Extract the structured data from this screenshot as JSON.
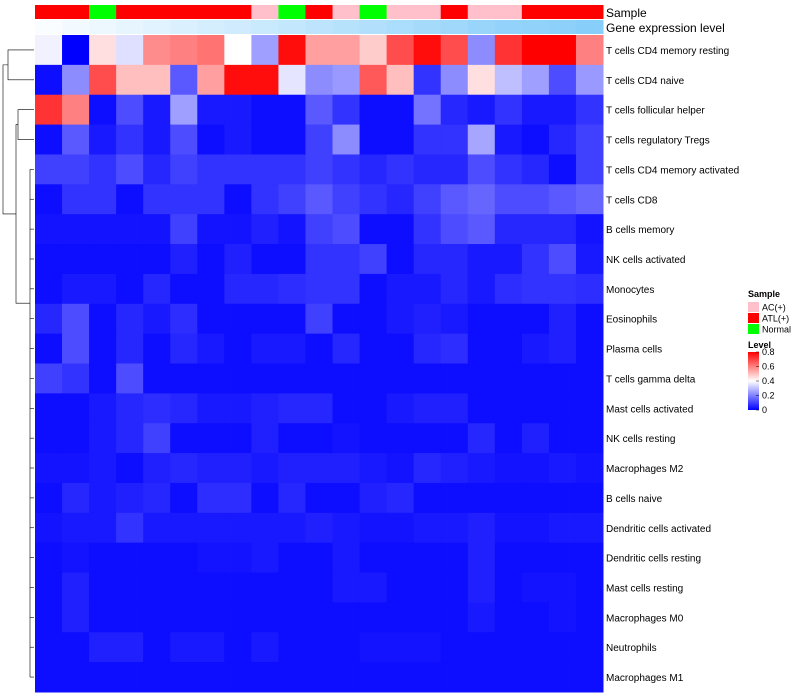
{
  "chart_data": {
    "type": "heatmap",
    "columns": 21,
    "annotations": {
      "sample_label": "Sample",
      "expression_label": "Gene expression level",
      "sample_track": [
        "ATL(+)",
        "ATL(+)",
        "Normal",
        "ATL(+)",
        "ATL(+)",
        "ATL(+)",
        "ATL(+)",
        "ATL(+)",
        "AC(+)",
        "Normal",
        "ATL(+)",
        "AC(+)",
        "Normal",
        "AC(+)",
        "AC(+)",
        "ATL(+)",
        "AC(+)",
        "AC(+)",
        "ATL(+)",
        "ATL(+)",
        "ATL(+)"
      ],
      "expression_track": [
        0.05,
        0.1,
        0.15,
        0.2,
        0.25,
        0.3,
        0.35,
        0.4,
        0.45,
        0.5,
        0.55,
        0.6,
        0.65,
        0.7,
        0.75,
        0.8,
        0.85,
        0.9,
        0.92,
        0.95,
        1.0
      ]
    },
    "rows": [
      {
        "label": "T cells CD4 memory resting",
        "values": [
          0.38,
          0.0,
          0.45,
          0.35,
          0.58,
          0.6,
          0.62,
          0.4,
          0.25,
          0.78,
          0.55,
          0.55,
          0.48,
          0.68,
          0.78,
          0.68,
          0.22,
          0.72,
          0.8,
          0.8,
          0.6
        ]
      },
      {
        "label": "T cells CD4 naive",
        "values": [
          0.02,
          0.22,
          0.68,
          0.5,
          0.5,
          0.14,
          0.55,
          0.78,
          0.78,
          0.36,
          0.22,
          0.24,
          0.66,
          0.5,
          0.08,
          0.22,
          0.45,
          0.3,
          0.25,
          0.12,
          0.24
        ]
      },
      {
        "label": "T cells follicular helper",
        "values": [
          0.72,
          0.6,
          0.02,
          0.12,
          0.04,
          0.25,
          0.04,
          0.04,
          0.02,
          0.02,
          0.14,
          0.08,
          0.02,
          0.02,
          0.18,
          0.06,
          0.04,
          0.08,
          0.04,
          0.04,
          0.08
        ]
      },
      {
        "label": "T cells regulatory  Tregs",
        "values": [
          0.02,
          0.14,
          0.04,
          0.08,
          0.04,
          0.12,
          0.02,
          0.04,
          0.02,
          0.02,
          0.1,
          0.22,
          0.02,
          0.02,
          0.08,
          0.08,
          0.26,
          0.04,
          0.02,
          0.06,
          0.1
        ]
      },
      {
        "label": "T cells CD4 memory activated",
        "values": [
          0.1,
          0.1,
          0.08,
          0.12,
          0.06,
          0.1,
          0.08,
          0.08,
          0.08,
          0.08,
          0.1,
          0.08,
          0.06,
          0.08,
          0.06,
          0.06,
          0.12,
          0.08,
          0.06,
          0.02,
          0.1
        ]
      },
      {
        "label": "T cells CD8",
        "values": [
          0.02,
          0.08,
          0.08,
          0.02,
          0.08,
          0.08,
          0.08,
          0.02,
          0.08,
          0.1,
          0.14,
          0.1,
          0.08,
          0.06,
          0.1,
          0.14,
          0.16,
          0.12,
          0.12,
          0.14,
          0.16
        ]
      },
      {
        "label": "B cells memory",
        "values": [
          0.03,
          0.03,
          0.03,
          0.03,
          0.03,
          0.1,
          0.03,
          0.03,
          0.05,
          0.03,
          0.1,
          0.12,
          0.02,
          0.02,
          0.08,
          0.12,
          0.14,
          0.06,
          0.06,
          0.06,
          0.03
        ]
      },
      {
        "label": "NK cells activated",
        "values": [
          0.02,
          0.02,
          0.02,
          0.02,
          0.02,
          0.05,
          0.02,
          0.05,
          0.02,
          0.02,
          0.08,
          0.08,
          0.1,
          0.02,
          0.06,
          0.06,
          0.04,
          0.04,
          0.08,
          0.12,
          0.04
        ]
      },
      {
        "label": "Monocytes",
        "values": [
          0.02,
          0.04,
          0.04,
          0.02,
          0.06,
          0.02,
          0.02,
          0.06,
          0.06,
          0.07,
          0.08,
          0.08,
          0.02,
          0.04,
          0.04,
          0.06,
          0.04,
          0.07,
          0.08,
          0.08,
          0.07
        ]
      },
      {
        "label": "Eosinophils",
        "values": [
          0.06,
          0.12,
          0.02,
          0.06,
          0.04,
          0.07,
          0.02,
          0.02,
          0.02,
          0.02,
          0.1,
          0.02,
          0.02,
          0.04,
          0.05,
          0.04,
          0.02,
          0.02,
          0.02,
          0.05,
          0.02
        ]
      },
      {
        "label": "Plasma cells",
        "values": [
          0.02,
          0.12,
          0.02,
          0.06,
          0.02,
          0.06,
          0.04,
          0.02,
          0.04,
          0.04,
          0.02,
          0.06,
          0.02,
          0.02,
          0.06,
          0.07,
          0.02,
          0.02,
          0.04,
          0.05,
          0.02
        ]
      },
      {
        "label": "T cells gamma delta",
        "values": [
          0.1,
          0.08,
          0.02,
          0.12,
          0.02,
          0.02,
          0.02,
          0.02,
          0.02,
          0.02,
          0.02,
          0.02,
          0.02,
          0.02,
          0.02,
          0.02,
          0.02,
          0.02,
          0.02,
          0.02,
          0.02
        ]
      },
      {
        "label": "Mast cells activated",
        "values": [
          0.02,
          0.02,
          0.04,
          0.06,
          0.07,
          0.06,
          0.04,
          0.04,
          0.05,
          0.06,
          0.06,
          0.02,
          0.02,
          0.04,
          0.05,
          0.05,
          0.02,
          0.02,
          0.02,
          0.02,
          0.02
        ]
      },
      {
        "label": "NK cells resting",
        "values": [
          0.02,
          0.02,
          0.04,
          0.06,
          0.1,
          0.02,
          0.02,
          0.02,
          0.05,
          0.02,
          0.02,
          0.03,
          0.02,
          0.02,
          0.02,
          0.02,
          0.06,
          0.02,
          0.05,
          0.02,
          0.02
        ]
      },
      {
        "label": "Macrophages M2",
        "values": [
          0.03,
          0.03,
          0.04,
          0.02,
          0.05,
          0.06,
          0.05,
          0.05,
          0.04,
          0.05,
          0.05,
          0.05,
          0.04,
          0.03,
          0.06,
          0.05,
          0.04,
          0.03,
          0.03,
          0.04,
          0.03
        ]
      },
      {
        "label": "B cells naive",
        "values": [
          0.02,
          0.06,
          0.04,
          0.05,
          0.06,
          0.02,
          0.07,
          0.07,
          0.02,
          0.06,
          0.02,
          0.02,
          0.05,
          0.06,
          0.02,
          0.02,
          0.02,
          0.02,
          0.02,
          0.02,
          0.02
        ]
      },
      {
        "label": "Dendritic cells activated",
        "values": [
          0.03,
          0.04,
          0.04,
          0.08,
          0.04,
          0.04,
          0.04,
          0.04,
          0.04,
          0.04,
          0.05,
          0.04,
          0.03,
          0.03,
          0.04,
          0.04,
          0.05,
          0.03,
          0.03,
          0.04,
          0.04
        ]
      },
      {
        "label": "Dendritic cells resting",
        "values": [
          0.02,
          0.03,
          0.02,
          0.02,
          0.02,
          0.02,
          0.03,
          0.03,
          0.04,
          0.02,
          0.02,
          0.04,
          0.02,
          0.02,
          0.02,
          0.02,
          0.05,
          0.02,
          0.02,
          0.02,
          0.02
        ]
      },
      {
        "label": "Mast cells resting",
        "values": [
          0.02,
          0.05,
          0.02,
          0.02,
          0.02,
          0.02,
          0.02,
          0.02,
          0.02,
          0.02,
          0.02,
          0.04,
          0.04,
          0.02,
          0.02,
          0.02,
          0.05,
          0.02,
          0.03,
          0.03,
          0.02
        ]
      },
      {
        "label": "Macrophages M0",
        "values": [
          0.02,
          0.05,
          0.02,
          0.02,
          0.02,
          0.02,
          0.02,
          0.02,
          0.02,
          0.02,
          0.02,
          0.02,
          0.02,
          0.02,
          0.02,
          0.02,
          0.04,
          0.02,
          0.02,
          0.03,
          0.02
        ]
      },
      {
        "label": "Neutrophils",
        "values": [
          0.02,
          0.02,
          0.05,
          0.05,
          0.02,
          0.04,
          0.04,
          0.02,
          0.04,
          0.02,
          0.02,
          0.02,
          0.03,
          0.03,
          0.03,
          0.02,
          0.02,
          0.02,
          0.02,
          0.02,
          0.02
        ]
      },
      {
        "label": "Macrophages M1",
        "values": [
          0.02,
          0.02,
          0.02,
          0.02,
          0.02,
          0.02,
          0.02,
          0.02,
          0.02,
          0.02,
          0.02,
          0.02,
          0.02,
          0.02,
          0.02,
          0.02,
          0.02,
          0.02,
          0.02,
          0.02,
          0.02
        ]
      }
    ],
    "row_dendrogram": "hierarchical clustering of rows",
    "legend": {
      "sample": {
        "title": "Sample",
        "items": [
          {
            "label": "AC(+)",
            "color": "#ffc0cb"
          },
          {
            "label": "ATL(+)",
            "color": "#ff0000"
          },
          {
            "label": "Normal",
            "color": "#00ff00"
          }
        ]
      },
      "level": {
        "title": "Level",
        "ticks": [
          "0.8",
          "0.6",
          "0.4",
          "0.2",
          "0"
        ],
        "tick_values": [
          0.8,
          0.6,
          0.4,
          0.2,
          0
        ],
        "range": [
          0,
          0.8
        ]
      }
    },
    "colors": {
      "low": "#0000ff",
      "mid": "#ffffff",
      "high": "#ff0000",
      "expression_low": "#ffffff",
      "expression_high": "#87cefa"
    }
  }
}
